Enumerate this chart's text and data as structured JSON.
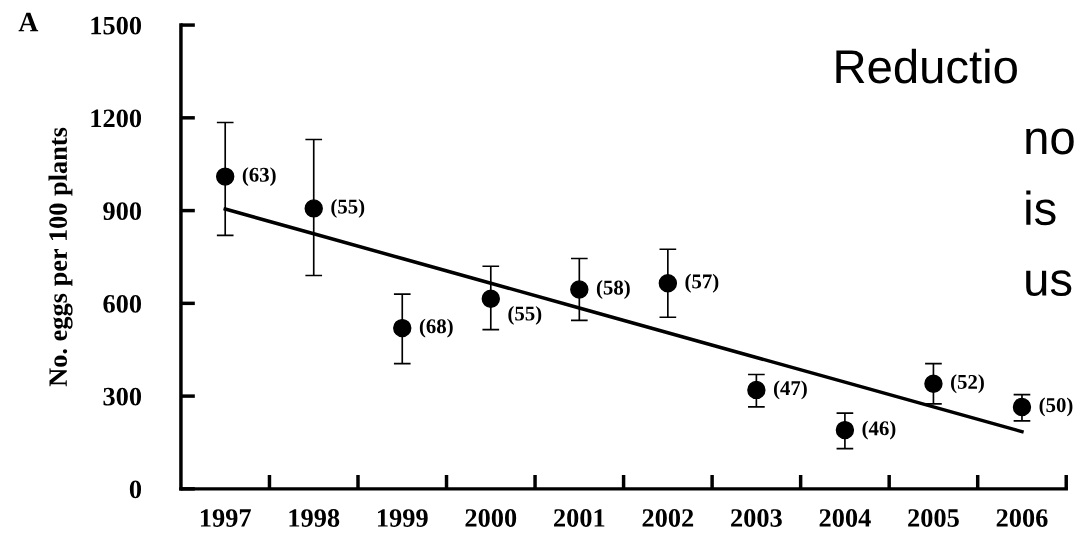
{
  "chart_data": {
    "type": "scatter",
    "ylabel": "No. eggs per 100 plants",
    "categories": [
      "1997",
      "1998",
      "1999",
      "2000",
      "2001",
      "2002",
      "2003",
      "2004",
      "2005",
      "2006"
    ],
    "series": [
      {
        "type": "scatter",
        "color": "#000000",
        "marker": "circle",
        "values": [
          1010,
          907,
          520,
          615,
          645,
          665,
          320,
          190,
          340,
          265
        ],
        "errors": [
          [
            820,
            1185
          ],
          [
            690,
            1130
          ],
          [
            405,
            630
          ],
          [
            515,
            720
          ],
          [
            545,
            745
          ],
          [
            555,
            775
          ],
          [
            265,
            370
          ],
          [
            130,
            245
          ],
          [
            275,
            405
          ],
          [
            220,
            305
          ]
        ]
      },
      {
        "type": "line",
        "color": "#000000",
        "values": [
          905,
          825,
          745,
          665,
          585,
          505,
          425,
          345,
          265,
          185
        ]
      }
    ],
    "ylim": [
      0,
      1500
    ],
    "yticks": [
      0,
      300,
      600,
      900,
      1200,
      1500
    ],
    "grid": false,
    "legend": false,
    "annotations": [
      "A",
      {
        "text": "(63)",
        "x": "1997",
        "y": 1010
      },
      {
        "text": "(55)",
        "x": "1998",
        "y": 907
      },
      {
        "text": "(68)",
        "x": "1999",
        "y": 520
      },
      {
        "text": "(55)",
        "x": "2000",
        "y": 615
      },
      {
        "text": "(58)",
        "x": "2001",
        "y": 645
      },
      {
        "text": "(57)",
        "x": "2002",
        "y": 665
      },
      {
        "text": "(47)",
        "x": "2003",
        "y": 320
      },
      {
        "text": "(46)",
        "x": "2004",
        "y": 190
      },
      {
        "text": "(52)",
        "x": "2005",
        "y": 340
      },
      {
        "text": "(50)",
        "x": "2006",
        "y": 265
      },
      "Reductio",
      "no",
      "is",
      "us"
    ]
  }
}
